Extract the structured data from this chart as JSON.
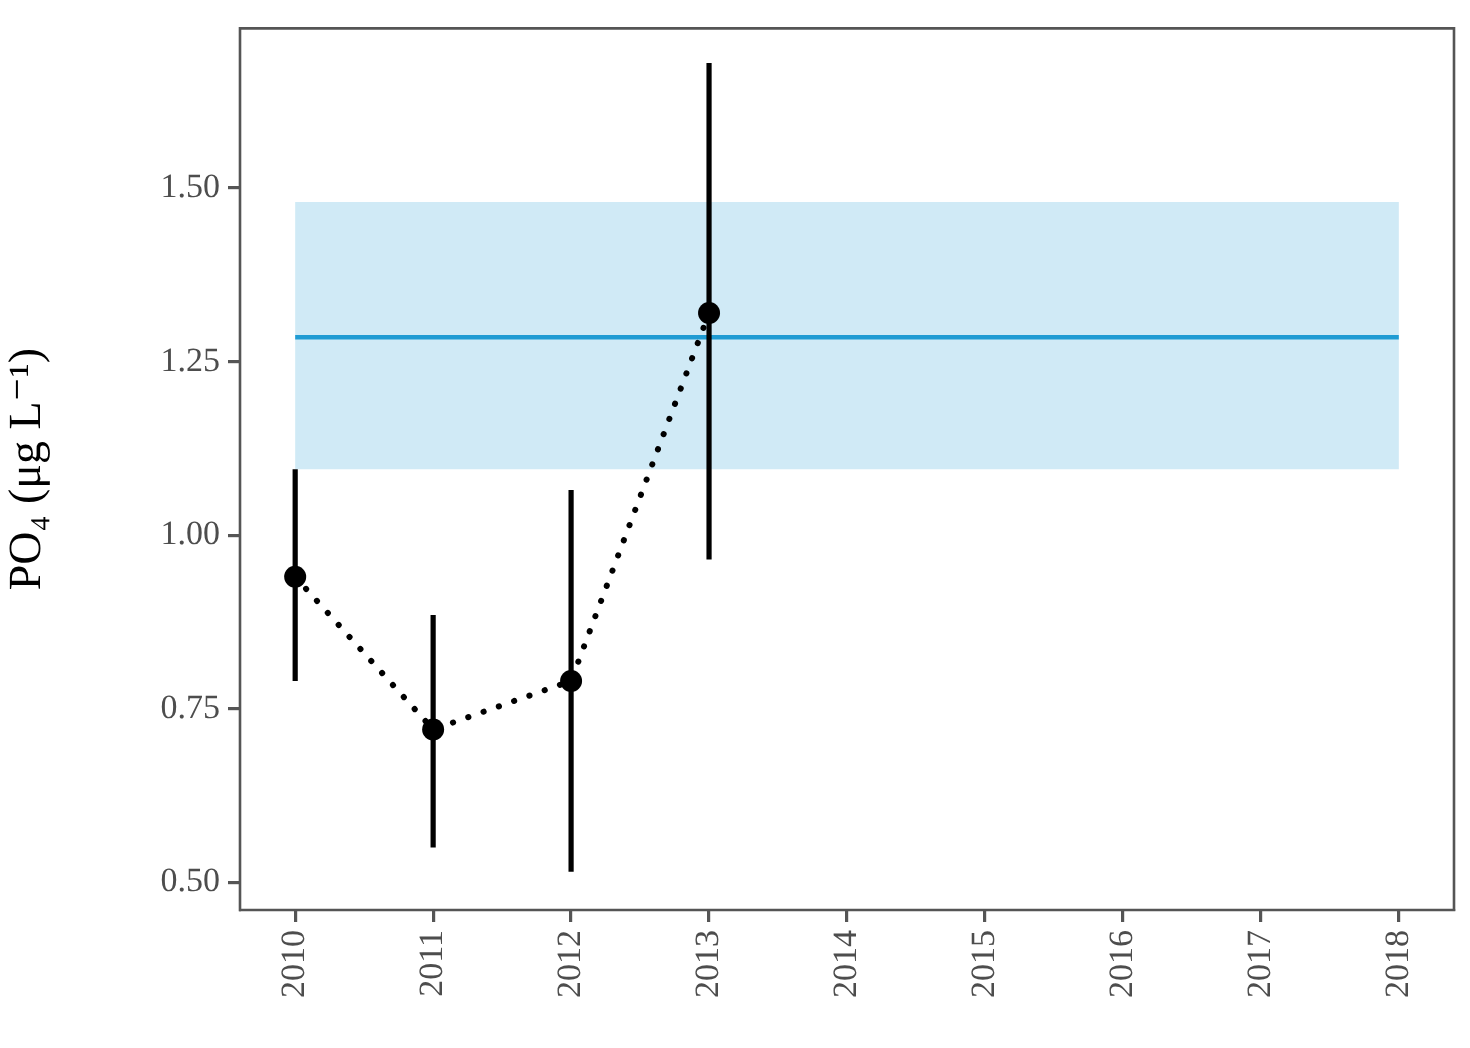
{
  "chart_data": {
    "type": "line",
    "ylabel": "PO₄ (μg L⁻¹)",
    "x": [
      2010,
      2011,
      2012,
      2013
    ],
    "series": [
      {
        "color": "#000000",
        "values": [
          0.94,
          0.72,
          0.79,
          1.32
        ],
        "errors": [
          [
            0.79,
            1.095
          ],
          [
            0.55,
            0.885
          ],
          [
            0.515,
            1.065
          ],
          [
            0.965,
            1.68
          ]
        ],
        "marker": "circle",
        "line_style": "dotted"
      },
      {
        "type": "line",
        "x": [
          2010,
          2018
        ],
        "color": "#1f9bd3",
        "values": [
          1.285,
          1.285
        ],
        "lower": [
          1.095,
          1.095
        ],
        "upper": [
          1.48,
          1.48
        ],
        "marker": "none",
        "line_style": "solid"
      }
    ],
    "xlim": [
      2009.6,
      2018.4
    ],
    "xticks": [
      2010,
      2011,
      2012,
      2013,
      2014,
      2015,
      2016,
      2017,
      2018
    ],
    "ylim": [
      0.46,
      1.73
    ],
    "yticks": [
      {
        "value": 0.5,
        "label": "0.50"
      },
      {
        "value": 0.75,
        "label": "0.75"
      },
      {
        "value": 1.0,
        "label": "1.00"
      },
      {
        "value": 1.25,
        "label": "1.25"
      },
      {
        "value": 1.5,
        "label": "1.50"
      }
    ],
    "grid": false
  }
}
